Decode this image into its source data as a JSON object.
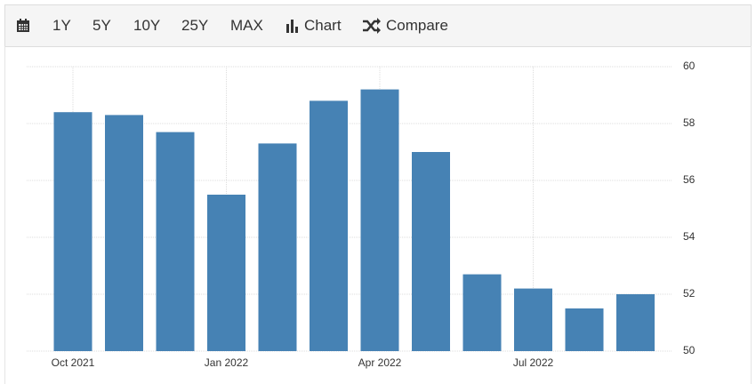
{
  "toolbar": {
    "buttons": [
      "1Y",
      "5Y",
      "10Y",
      "25Y",
      "MAX",
      "Chart",
      "Compare"
    ]
  },
  "chart_data": {
    "type": "bar",
    "categories": [
      "Oct 2021",
      null,
      null,
      "Jan 2022",
      null,
      null,
      "Apr 2022",
      null,
      null,
      "Jul 2022",
      null,
      null
    ],
    "values": [
      58.4,
      58.3,
      57.7,
      55.5,
      57.3,
      58.8,
      59.2,
      57.0,
      52.7,
      52.2,
      51.5,
      52.0
    ],
    "color": "#4682b4",
    "ylim": [
      50,
      60
    ],
    "yticks": [
      50,
      52,
      54,
      56,
      58,
      60
    ],
    "grid": true
  }
}
